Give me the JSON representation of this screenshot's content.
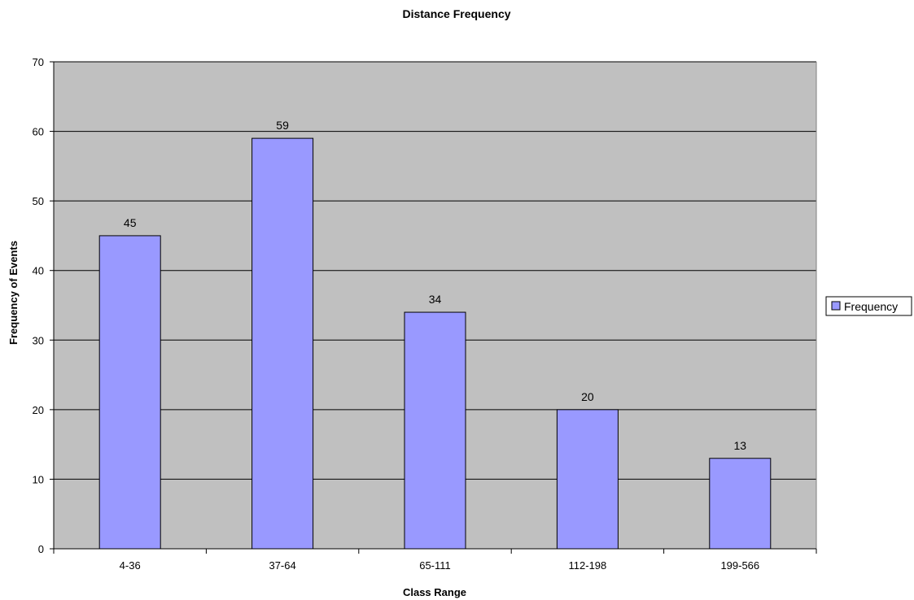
{
  "chart_data": {
    "type": "bar",
    "title": "Distance Frequency",
    "xlabel": "Class Range",
    "ylabel": "Frequency of Events",
    "categories": [
      "4-36",
      "37-64",
      "65-111",
      "112-198",
      "199-566"
    ],
    "series": [
      {
        "name": "Frequency",
        "values": [
          45,
          59,
          34,
          20,
          13
        ],
        "color": "#9999ff"
      }
    ],
    "ylim": [
      0,
      70
    ],
    "yticks": [
      0,
      10,
      20,
      30,
      40,
      50,
      60,
      70
    ],
    "grid": true,
    "legend_position": "right",
    "plot_background": "#c0c0c0",
    "data_labels": true
  }
}
